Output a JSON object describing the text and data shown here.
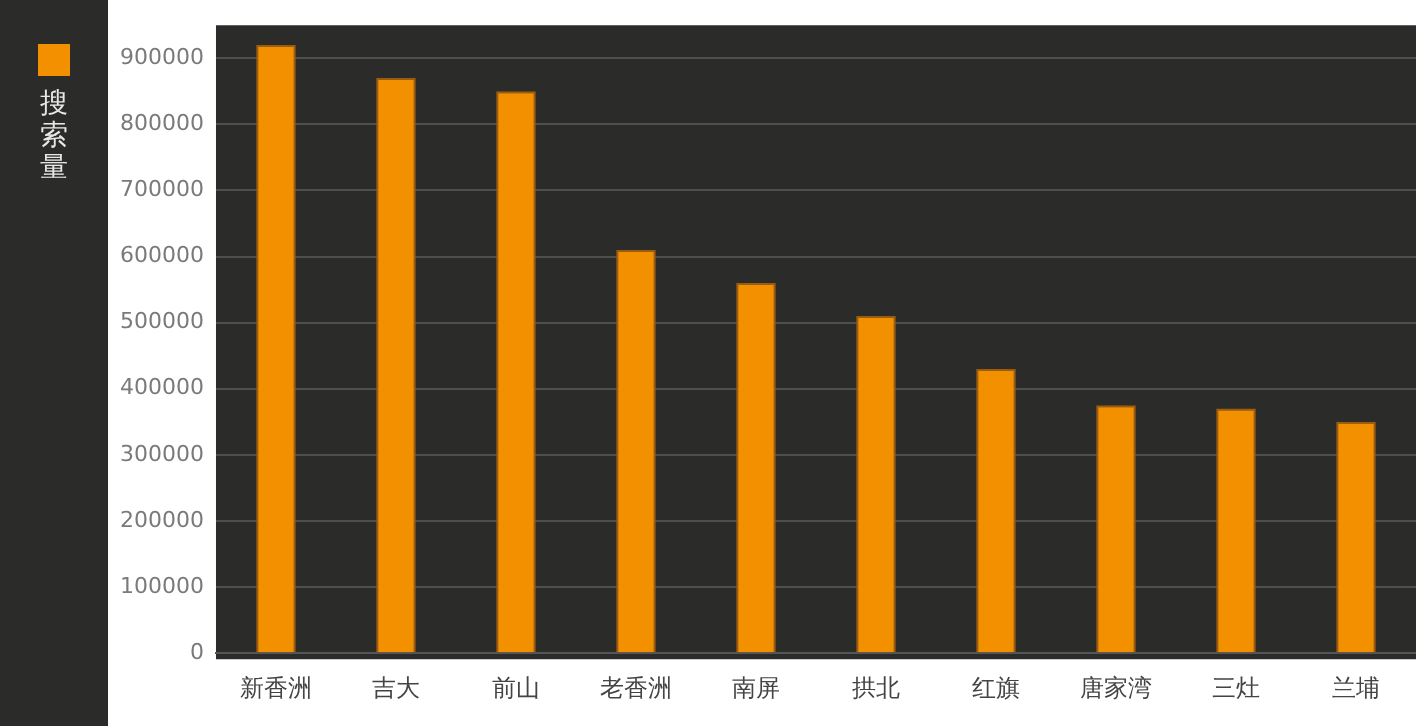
{
  "chart_data": {
    "type": "bar",
    "categories": [
      "新香洲",
      "吉大",
      "前山",
      "老香洲",
      "南屏",
      "拱北",
      "红旗",
      "唐家湾",
      "三灶",
      "兰埔"
    ],
    "series": [
      {
        "name": "搜索量",
        "color": "#f39000",
        "values": [
          920000,
          870000,
          850000,
          610000,
          560000,
          510000,
          430000,
          375000,
          370000,
          350000
        ]
      }
    ],
    "ylim": [
      0,
      950000
    ],
    "yticks": [
      0,
      100000,
      200000,
      300000,
      400000,
      500000,
      600000,
      700000,
      800000,
      900000
    ],
    "grid": "y",
    "legend": "left"
  }
}
